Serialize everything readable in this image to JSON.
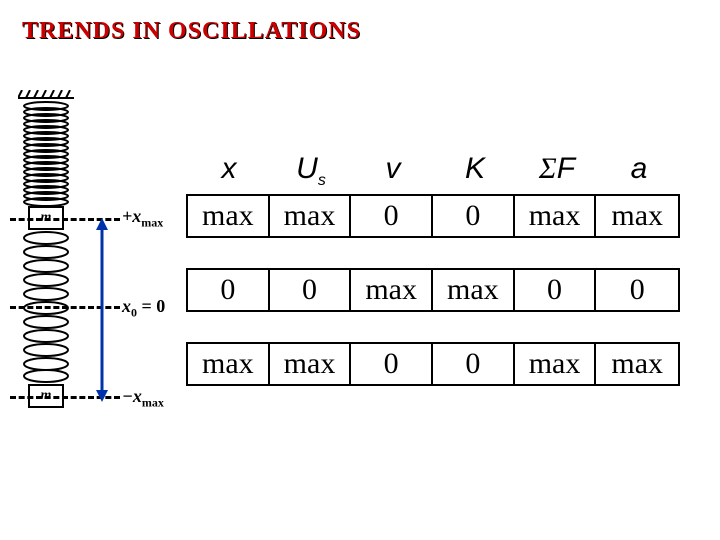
{
  "title": "TRENDS IN OSCILLATIONS",
  "diagram": {
    "mass_label_top": "m",
    "mass_label_bot": "m",
    "pos_top_prefix": "+",
    "pos_top_var": "x",
    "pos_top_sub": "max",
    "pos_mid_var": "x",
    "pos_mid_sub": "0",
    "pos_mid_suffix": " = 0",
    "pos_bot_prefix": "−",
    "pos_bot_var": "x",
    "pos_bot_sub": "max",
    "dash_color": "#000000",
    "arrow_color": "#0033aa"
  },
  "table": {
    "headers": [
      {
        "html": "x"
      },
      {
        "html": "U<span class='ssub'>s</span>"
      },
      {
        "html": "v"
      },
      {
        "html": "K"
      },
      {
        "html": "<span style='font-family:Symbol;'>&#931;</span>F"
      },
      {
        "html": "a"
      }
    ],
    "header_font": "Arial",
    "header_fontsize": 30,
    "cell_font": "Times New Roman",
    "cell_fontsize": 30,
    "row_gap": 30,
    "border_color": "#000000",
    "rows": [
      [
        "max",
        "max",
        "0",
        "0",
        "max",
        "max"
      ],
      [
        "0",
        "0",
        "max",
        "max",
        "0",
        "0"
      ],
      [
        "max",
        "max",
        "0",
        "0",
        "max",
        "max"
      ]
    ]
  },
  "colors": {
    "title": "#cc0000",
    "background": "#ffffff",
    "text": "#000000"
  }
}
